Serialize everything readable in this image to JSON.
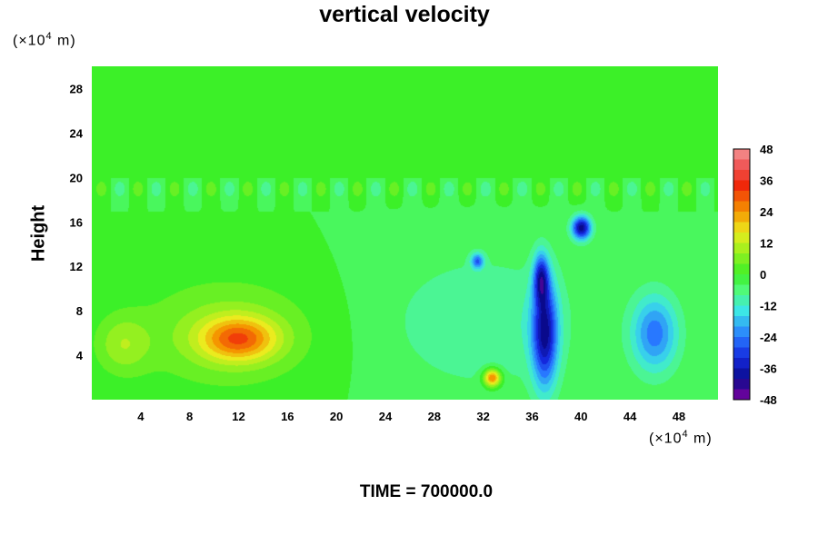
{
  "chart_data": {
    "type": "heatmap",
    "title": "vertical velocity",
    "ylabel": "Height",
    "x_unit": "10^4 m",
    "y_unit": "10^4 m",
    "x_unit_label": {
      "prefix": "(×10",
      "exp": "4",
      "suffix": " m)"
    },
    "y_unit_label": {
      "prefix": "(×10",
      "exp": "4",
      "suffix": " m)"
    },
    "xlim": [
      0,
      51.2
    ],
    "ylim": [
      0,
      30
    ],
    "x_ticks": [
      4,
      8,
      12,
      16,
      20,
      24,
      28,
      32,
      36,
      40,
      44,
      48
    ],
    "y_ticks": [
      4,
      8,
      12,
      16,
      20,
      24,
      28
    ],
    "colorbar": {
      "range": [
        -48,
        48
      ],
      "ticks": [
        48,
        36,
        24,
        12,
        0,
        -12,
        -24,
        -36,
        -48
      ]
    },
    "background_value": -2,
    "features": [
      {
        "desc": "large warm updraft region",
        "x": 11,
        "y": 6,
        "rx": 8,
        "ry": 5.5,
        "value": 8
      },
      {
        "desc": "updraft core",
        "x": 12,
        "y": 5.5,
        "rx": 3.5,
        "ry": 2.2,
        "value": 22
      },
      {
        "desc": "small updraft cell",
        "x": 32.7,
        "y": 2,
        "rx": 0.8,
        "ry": 0.9,
        "value": 30
      },
      {
        "desc": "broad weak downdraft",
        "x": 32,
        "y": 7,
        "rx": 9,
        "ry": 7,
        "value": -10
      },
      {
        "desc": "strong downdraft column",
        "x": 37,
        "y": 6,
        "rx": 1.2,
        "ry": 5.5,
        "value": -36
      },
      {
        "desc": "downdraft upper column",
        "x": 36.7,
        "y": 11,
        "rx": 0.7,
        "ry": 2.5,
        "value": -28
      },
      {
        "desc": "upper downdraft cell",
        "x": 40,
        "y": 15.5,
        "rx": 0.9,
        "ry": 1.2,
        "value": -40
      },
      {
        "desc": "downdraft region right",
        "x": 46,
        "y": 6,
        "rx": 2.2,
        "ry": 4,
        "value": -24
      },
      {
        "desc": "small downdraft cell",
        "x": 31.5,
        "y": 12.5,
        "rx": 0.6,
        "ry": 0.8,
        "value": -24
      },
      {
        "desc": "weak updraft left edge",
        "x": 2.5,
        "y": 5,
        "rx": 2.5,
        "ry": 3,
        "value": 8
      }
    ]
  },
  "footer": {
    "time_label": "TIME = 700000.0"
  }
}
